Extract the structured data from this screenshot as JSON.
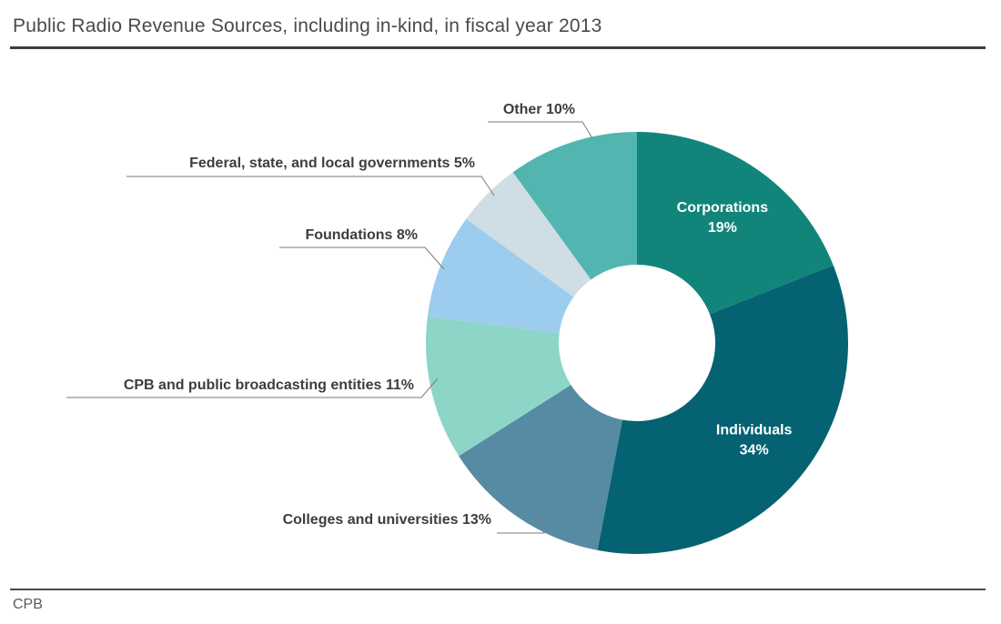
{
  "title": "Public Radio Revenue Sources, including in-kind, in fiscal year 2013",
  "source": "CPB",
  "chart_data": {
    "type": "pie",
    "variant": "donut",
    "title": "Public Radio Revenue Sources, including in-kind, in fiscal year 2013",
    "unit": "%",
    "slices": [
      {
        "label": "Corporations",
        "value": 19,
        "color": "#12857a",
        "label_inside": true,
        "display": [
          "Corporations",
          "19%"
        ]
      },
      {
        "label": "Individuals",
        "value": 34,
        "color": "#056272",
        "label_inside": true,
        "display": [
          "Individuals",
          "34%"
        ]
      },
      {
        "label": "Colleges and universities",
        "value": 13,
        "color": "#578ba4",
        "label_inside": false,
        "display": [
          "Colleges and universities 13%"
        ]
      },
      {
        "label": "CPB and public broadcasting entities",
        "value": 11,
        "color": "#8dd6c7",
        "label_inside": false,
        "display": [
          "CPB and public broadcasting entities 11%"
        ]
      },
      {
        "label": "Foundations",
        "value": 8,
        "color": "#9ccdef",
        "label_inside": false,
        "display": [
          "Foundations 8%"
        ]
      },
      {
        "label": "Federal, state, and local governments",
        "value": 5,
        "color": "#cfdde4",
        "label_inside": false,
        "display": [
          "Federal, state, and local governments 5%"
        ]
      },
      {
        "label": "Other",
        "value": 10,
        "color": "#52b5b0",
        "label_inside": false,
        "display": [
          "Other 10%"
        ]
      }
    ]
  }
}
